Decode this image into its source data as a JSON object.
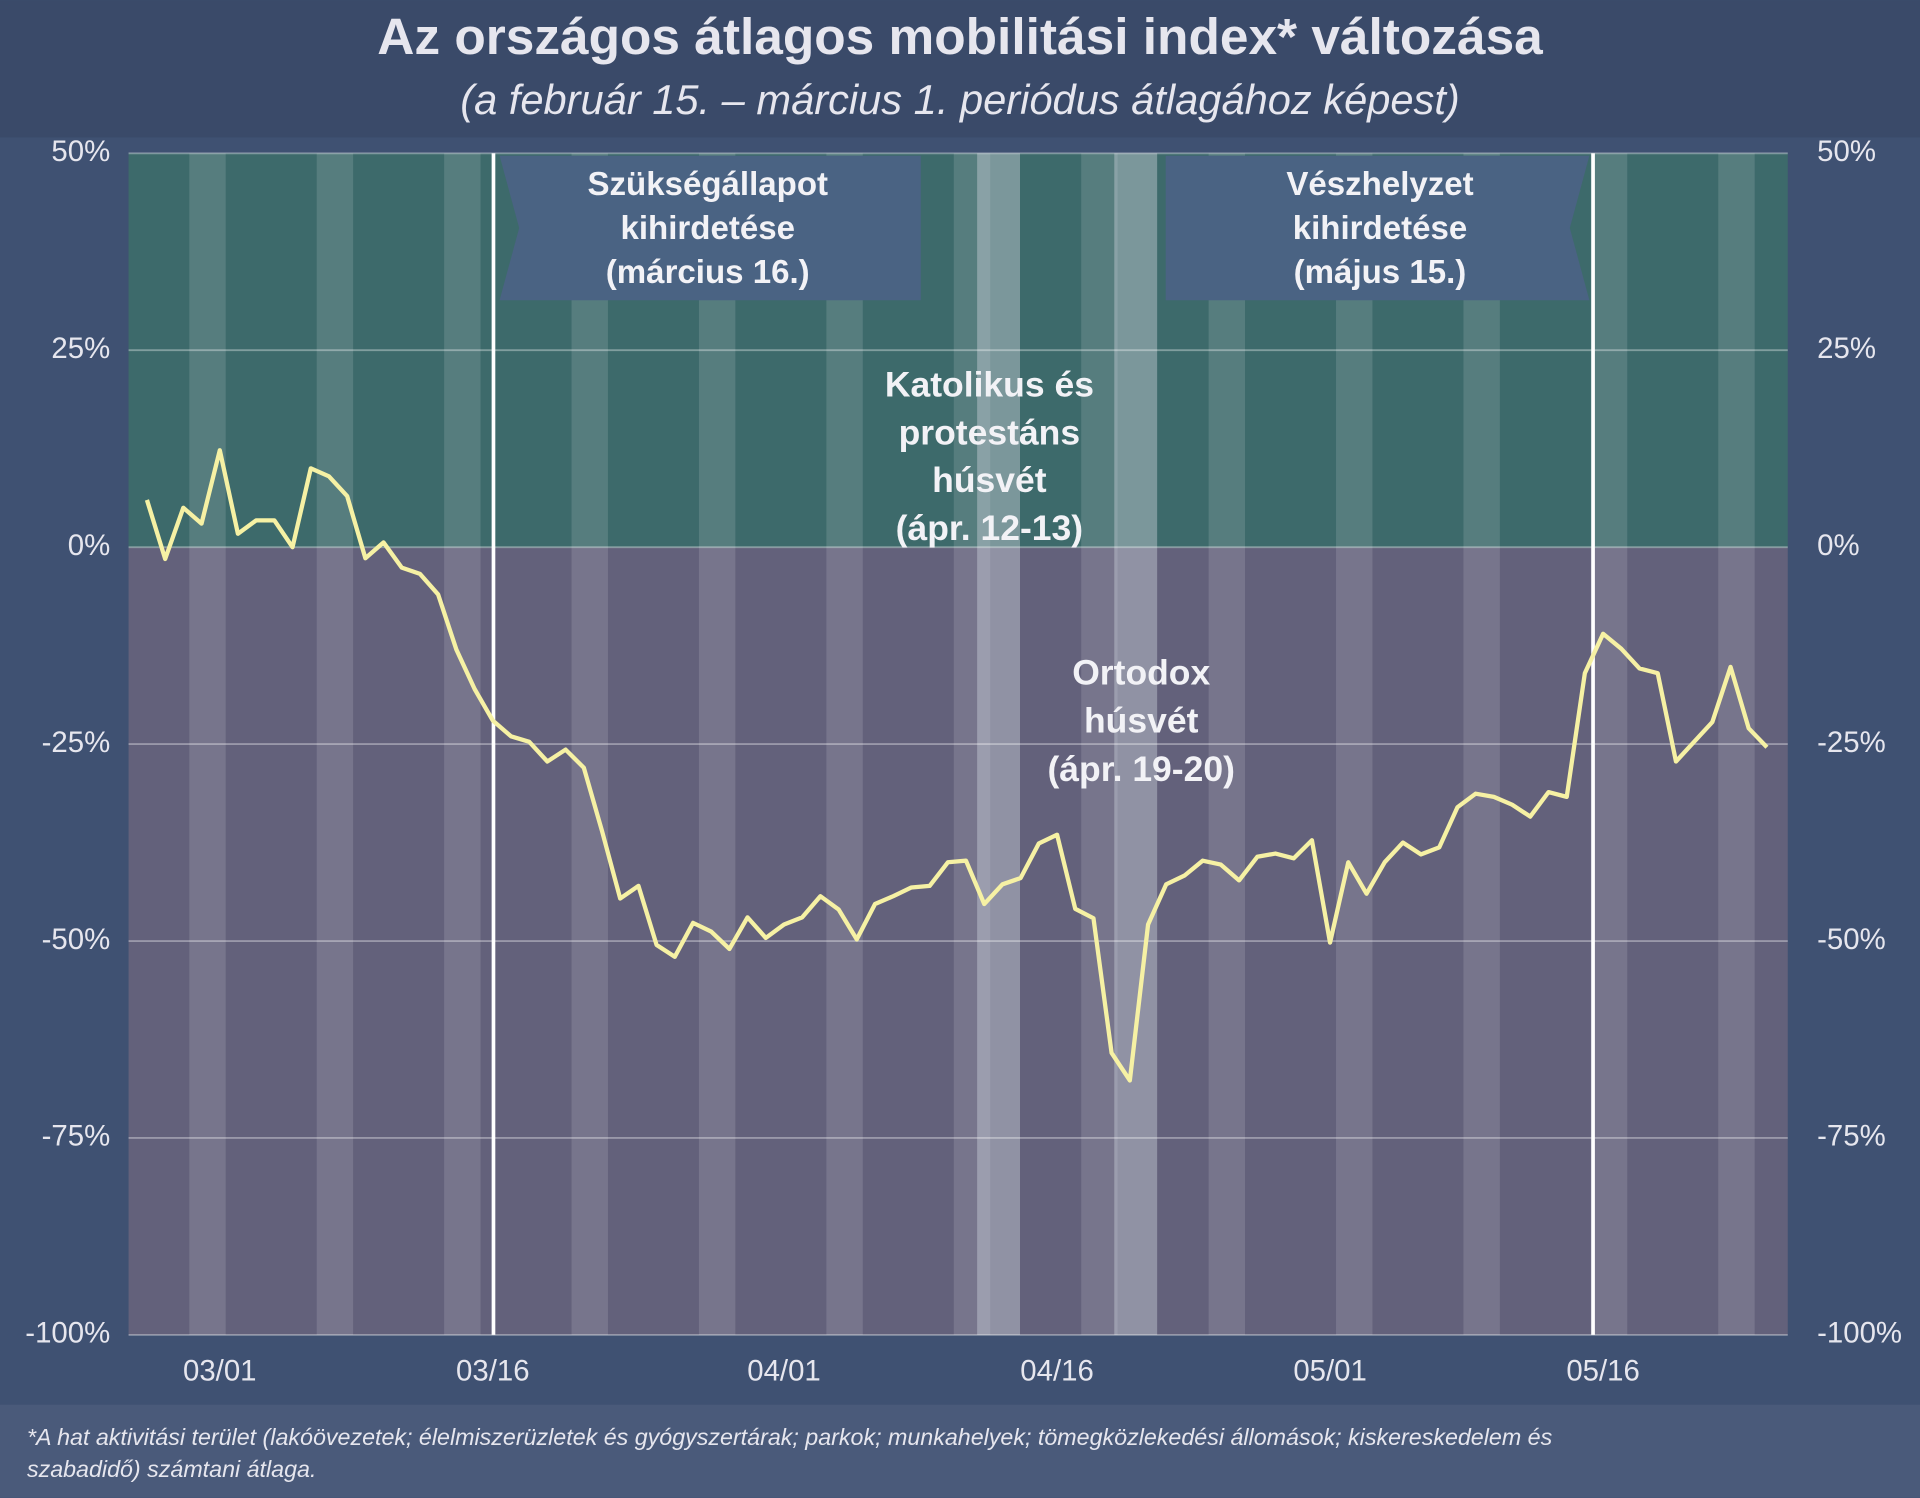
{
  "chart_data": {
    "type": "line",
    "title": "Az országos átlagos mobilitási index* változása",
    "subtitle": "(a február 15. – március 1. periódus átlagához képest)",
    "categories": [
      null,
      null,
      null,
      null,
      "03/01",
      null,
      null,
      null,
      null,
      null,
      null,
      null,
      null,
      null,
      null,
      null,
      null,
      null,
      null,
      "03/16",
      null,
      null,
      null,
      null,
      null,
      null,
      null,
      null,
      null,
      null,
      null,
      null,
      null,
      null,
      null,
      "04/01",
      null,
      null,
      null,
      null,
      null,
      null,
      null,
      null,
      null,
      null,
      null,
      null,
      null,
      null,
      "04/16",
      null,
      null,
      null,
      null,
      null,
      null,
      null,
      null,
      null,
      null,
      null,
      null,
      null,
      null,
      "05/01",
      null,
      null,
      null,
      null,
      null,
      null,
      null,
      null,
      null,
      null,
      null,
      null,
      null,
      null,
      "05/16",
      null,
      null,
      null,
      null,
      null,
      null,
      null,
      null,
      null
    ],
    "series": [
      {
        "color": "#f6f1a4",
        "values": [
          6,
          -1.5,
          5,
          3,
          12.3,
          1.7,
          3.4,
          3.4,
          0,
          10,
          9,
          6.5,
          -1.4,
          0.6,
          -2.6,
          -3.4,
          -6,
          -13,
          -18,
          -22,
          -24,
          -24.7,
          -27.2,
          -25.7,
          -28,
          -36,
          -44.6,
          -43,
          -50.5,
          -52,
          -47.7,
          -48.8,
          -51,
          -47,
          -49.6,
          -47.9,
          -47,
          -44.3,
          -46,
          -49.8,
          -45.3,
          -44.3,
          -43.2,
          -43,
          -40,
          -39.8,
          -45.3,
          -42.8,
          -42,
          -37.6,
          -36.5,
          -45.9,
          -47.1,
          -64.2,
          -67.7,
          -47.9,
          -42.8,
          -41.7,
          -39.8,
          -40.3,
          -42.3,
          -39.3,
          -38.9,
          -39.5,
          -37.2,
          -50.2,
          -40,
          -44,
          -40,
          -37.5,
          -39,
          -38.1,
          -33,
          -31.3,
          -31.7,
          -32.7,
          -34.2,
          -31.1,
          -31.7,
          -16,
          -11,
          -12.9,
          -15.4,
          -16,
          -27.2,
          -24.7,
          -22.2,
          -15.2,
          -23,
          -25.4
        ]
      }
    ],
    "ylim": [
      -100,
      50
    ],
    "yticks": [
      {
        "value": -100,
        "label": "-100%"
      },
      {
        "value": -75,
        "label": "-75%"
      },
      {
        "value": -50,
        "label": "-50%"
      },
      {
        "value": -25,
        "label": "-25%"
      },
      {
        "value": 0,
        "label": "0%"
      },
      {
        "value": 25,
        "label": "25%"
      },
      {
        "value": 50,
        "label": "50%"
      }
    ],
    "grid": true,
    "annotations": [
      {
        "text": [
          "Szükségállapot",
          "kihirdetése",
          "(március 16.)"
        ]
      },
      {
        "text": [
          "Vészhelyzet",
          "kihirdetése",
          "(május 15.)"
        ]
      },
      {
        "text": [
          "Katolikus és",
          "protestáns",
          "húsvét",
          "(ápr. 12-13)"
        ]
      },
      {
        "text": [
          "Ortodox",
          "húsvét",
          "(ápr. 19-20)"
        ]
      }
    ],
    "footnote": [
      "*A hat aktivitási terület (lakóövezetek; élelmiszerüzletek és gyógyszertárak; parkok; munkahelyek; tömegközlekedési állomások; kiskereskedelem és",
      "szabadidő) számtani átlaga."
    ]
  }
}
